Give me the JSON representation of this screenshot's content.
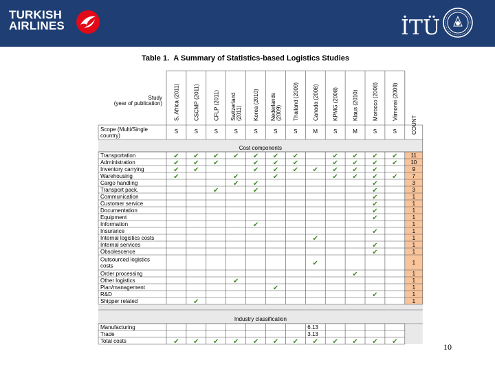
{
  "header": {
    "airline_line1": "TURKISH",
    "airline_line2": "AIRLINES",
    "university": "İTÜ"
  },
  "table": {
    "label": "Table 1.",
    "title": "A Summary of Statistics-based Logistics Studies",
    "study_header": [
      "Study",
      "(year of publication)"
    ],
    "studies": [
      [
        "S. Africa (2011)"
      ],
      [
        "CSCMP (2011)"
      ],
      [
        "CFLP (2011)"
      ],
      [
        "Switzerland",
        "(2011)"
      ],
      [
        "Korea (2010)"
      ],
      [
        "Nederlands",
        "(2009)"
      ],
      [
        "Thailand (2009)"
      ],
      [
        "Canada (2008)"
      ],
      [
        "KPMG (2008)"
      ],
      [
        "Klaus (2010)"
      ],
      [
        "Morocco (2008)"
      ],
      [
        "Viimonsi (2009)"
      ]
    ],
    "count_label": "COUNT",
    "scope_label": [
      "Scope (Multi/Single",
      "country)"
    ],
    "scope_values": [
      "S",
      "S",
      "S",
      "S",
      "S",
      "S",
      "S",
      "M",
      "S",
      "M",
      "S",
      "S"
    ],
    "cost_section": "Cost components",
    "check_glyph": "✔",
    "cost_rows": [
      {
        "label": [
          "Transportation"
        ],
        "checks": [
          1,
          1,
          1,
          1,
          1,
          1,
          1,
          0,
          1,
          1,
          1,
          1
        ],
        "count": "11"
      },
      {
        "label": [
          "Administration"
        ],
        "checks": [
          1,
          1,
          1,
          0,
          1,
          1,
          1,
          0,
          1,
          1,
          1,
          1
        ],
        "count": "10"
      },
      {
        "label": [
          "Inventory carrying"
        ],
        "checks": [
          1,
          1,
          0,
          0,
          1,
          1,
          1,
          1,
          1,
          1,
          1,
          0
        ],
        "count": "9"
      },
      {
        "label": [
          "Warehousing"
        ],
        "checks": [
          1,
          0,
          0,
          1,
          0,
          1,
          0,
          0,
          1,
          1,
          1,
          1
        ],
        "count": "7"
      },
      {
        "label": [
          "Cargo handling"
        ],
        "checks": [
          0,
          0,
          0,
          1,
          1,
          0,
          0,
          0,
          0,
          0,
          1,
          0
        ],
        "count": "3"
      },
      {
        "label": [
          "Transport pack."
        ],
        "checks": [
          0,
          0,
          1,
          0,
          1,
          0,
          0,
          0,
          0,
          0,
          1,
          0
        ],
        "count": "3"
      },
      {
        "label": [
          "Communication"
        ],
        "checks": [
          0,
          0,
          0,
          0,
          0,
          0,
          0,
          0,
          0,
          0,
          1,
          0
        ],
        "count": "1"
      },
      {
        "label": [
          "Customer service"
        ],
        "checks": [
          0,
          0,
          0,
          0,
          0,
          0,
          0,
          0,
          0,
          0,
          1,
          0
        ],
        "count": "1"
      },
      {
        "label": [
          "Documentation"
        ],
        "checks": [
          0,
          0,
          0,
          0,
          0,
          0,
          0,
          0,
          0,
          0,
          1,
          0
        ],
        "count": "1"
      },
      {
        "label": [
          "Equipment"
        ],
        "checks": [
          0,
          0,
          0,
          0,
          0,
          0,
          0,
          0,
          0,
          0,
          1,
          0
        ],
        "count": "1"
      },
      {
        "label": [
          "Information"
        ],
        "checks": [
          0,
          0,
          0,
          0,
          1,
          0,
          0,
          0,
          0,
          0,
          0,
          0
        ],
        "count": "1"
      },
      {
        "label": [
          "Insurance"
        ],
        "checks": [
          0,
          0,
          0,
          0,
          0,
          0,
          0,
          0,
          0,
          0,
          1,
          0
        ],
        "count": "1"
      },
      {
        "label": [
          "Internal logistics costs"
        ],
        "checks": [
          0,
          0,
          0,
          0,
          0,
          0,
          0,
          1,
          0,
          0,
          0,
          0
        ],
        "count": "1"
      },
      {
        "label": [
          "Internal services"
        ],
        "checks": [
          0,
          0,
          0,
          0,
          0,
          0,
          0,
          0,
          0,
          0,
          1,
          0
        ],
        "count": "1"
      },
      {
        "label": [
          "Obsolescence"
        ],
        "checks": [
          0,
          0,
          0,
          0,
          0,
          0,
          0,
          0,
          0,
          0,
          1,
          0
        ],
        "count": "1"
      },
      {
        "label": [
          "Outsourced logistics",
          "costs"
        ],
        "checks": [
          0,
          0,
          0,
          0,
          0,
          0,
          0,
          1,
          0,
          0,
          0,
          0
        ],
        "count": "1"
      },
      {
        "label": [
          "Order processing"
        ],
        "checks": [
          0,
          0,
          0,
          0,
          0,
          0,
          0,
          0,
          0,
          1,
          0,
          0
        ],
        "count": "1"
      },
      {
        "label": [
          "Other logistics"
        ],
        "checks": [
          0,
          0,
          0,
          1,
          0,
          0,
          0,
          0,
          0,
          0,
          0,
          0
        ],
        "count": "1"
      },
      {
        "label": [
          "Plan/management"
        ],
        "checks": [
          0,
          0,
          0,
          0,
          0,
          1,
          0,
          0,
          0,
          0,
          0,
          0
        ],
        "count": "1"
      },
      {
        "label": [
          "R&D"
        ],
        "checks": [
          0,
          0,
          0,
          0,
          0,
          0,
          0,
          0,
          0,
          0,
          1,
          0
        ],
        "count": "1"
      },
      {
        "label": [
          "Shipper related"
        ],
        "checks": [
          0,
          1,
          0,
          0,
          0,
          0,
          0,
          0,
          0,
          0,
          0,
          0
        ],
        "count": "1"
      }
    ],
    "industry_section": "Industry classification",
    "industry_rows": [
      {
        "label": [
          "Manufacturing"
        ],
        "col": 7,
        "value": "6.13"
      },
      {
        "label": [
          "Trade"
        ],
        "col": 7,
        "value": "3.13"
      }
    ],
    "total_row": {
      "label": [
        "Total costs"
      ],
      "checks": [
        1,
        1,
        1,
        1,
        1,
        1,
        1,
        1,
        1,
        1,
        1,
        1
      ]
    }
  },
  "page_number": "10",
  "colors": {
    "header_blue": "#1f3e73",
    "check_green": "#3f8a27",
    "count_orange": "#f8c49c",
    "section_gray": "#e9e9e9",
    "logo_red": "#e30a17"
  }
}
